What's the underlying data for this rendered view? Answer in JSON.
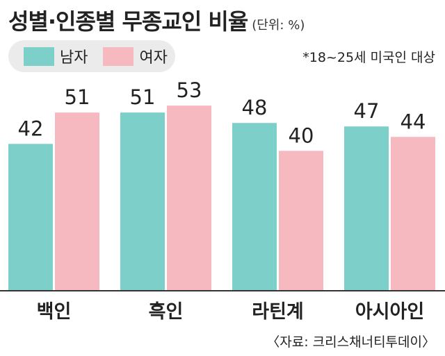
{
  "chart_data": {
    "type": "bar",
    "title": "성별·인종별 무종교인 비율",
    "unit_note": "(단위: %)",
    "categories": [
      "백인",
      "흑인",
      "라틴계",
      "아시아인"
    ],
    "series": [
      {
        "name": "남자",
        "color": "#7dd0c9",
        "values": [
          42,
          51,
          48,
          47
        ]
      },
      {
        "name": "여자",
        "color": "#f7b9c0",
        "values": [
          51,
          53,
          40,
          44
        ]
      }
    ],
    "ylim": [
      0,
      61
    ],
    "grid": false,
    "legend_position": "top-left",
    "note": "*18~25세 미국인 대상",
    "source": "〈자료: 크리스채너티투데이〉"
  }
}
